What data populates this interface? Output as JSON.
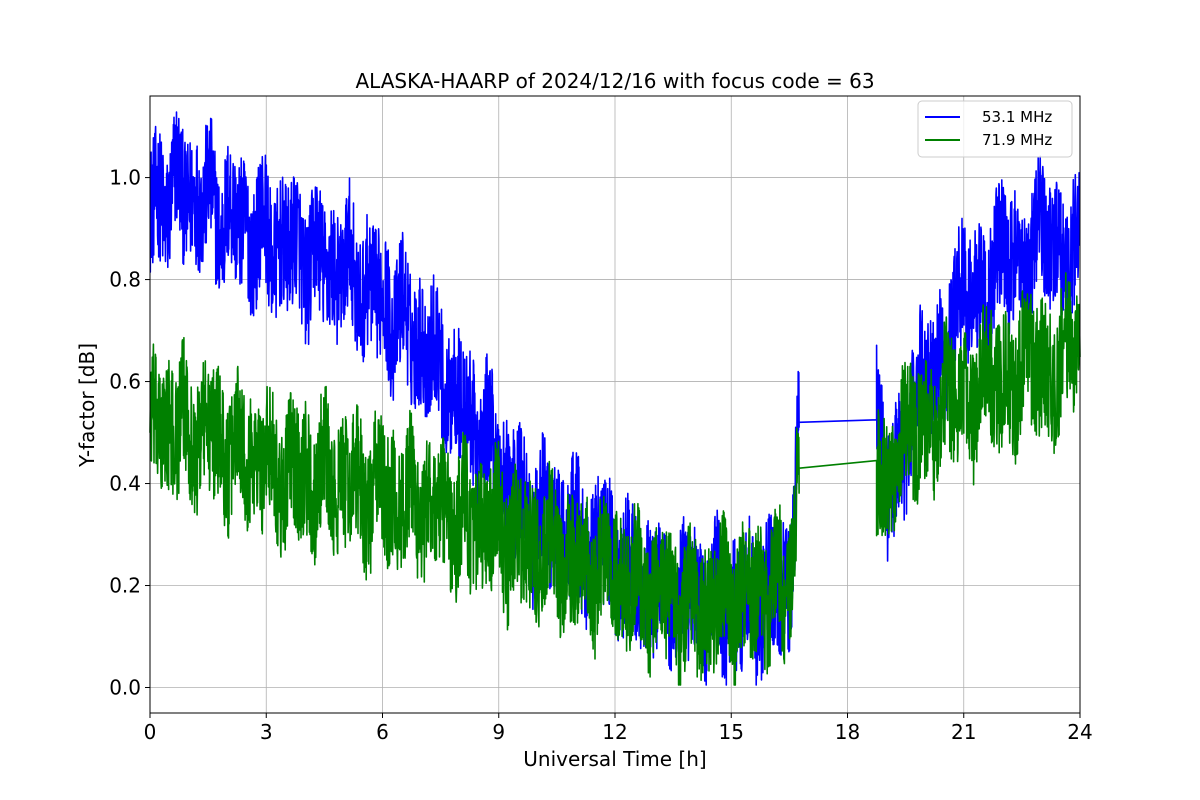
{
  "chart_data": {
    "type": "line",
    "title": "ALASKA-HAARP of 2024/12/16 with focus code = 63",
    "xlabel": "Universal Time [h]",
    "ylabel": "Y-factor [dB]",
    "xlim": [
      0,
      24
    ],
    "ylim": [
      -0.05,
      1.16
    ],
    "xticks": [
      0,
      3,
      6,
      9,
      12,
      15,
      18,
      21,
      24
    ],
    "xtick_labels": [
      "0",
      "3",
      "6",
      "9",
      "12",
      "15",
      "18",
      "21",
      "24"
    ],
    "yticks": [
      0.0,
      0.2,
      0.4,
      0.6,
      0.8,
      1.0
    ],
    "ytick_labels": [
      "0.0",
      "0.2",
      "0.4",
      "0.6",
      "0.8",
      "1.0"
    ],
    "grid": true,
    "legend_position": "top-right",
    "gap": {
      "start": 16.75,
      "end": 18.75
    },
    "series": [
      {
        "name": "53.1 MHz",
        "color": "#0000ff",
        "x": [
          0,
          0.5,
          1,
          1.5,
          2,
          2.5,
          3,
          3.5,
          4,
          4.5,
          5,
          5.5,
          6,
          6.5,
          7,
          7.5,
          8,
          8.5,
          9,
          9.5,
          10,
          10.5,
          11,
          11.5,
          12,
          12.5,
          13,
          13.5,
          14,
          14.5,
          15,
          15.5,
          16,
          16.5,
          16.75,
          18.75,
          19,
          19.5,
          20,
          20.5,
          21,
          21.5,
          22,
          22.5,
          23,
          23.5,
          24
        ],
        "y": [
          0.94,
          0.97,
          0.97,
          0.95,
          0.92,
          0.9,
          0.88,
          0.86,
          0.85,
          0.83,
          0.82,
          0.79,
          0.76,
          0.72,
          0.68,
          0.63,
          0.55,
          0.5,
          0.45,
          0.37,
          0.33,
          0.31,
          0.29,
          0.28,
          0.25,
          0.22,
          0.2,
          0.18,
          0.18,
          0.17,
          0.16,
          0.17,
          0.18,
          0.2,
          0.52,
          0.525,
          0.38,
          0.5,
          0.6,
          0.68,
          0.76,
          0.8,
          0.83,
          0.85,
          0.88,
          0.87,
          0.86
        ],
        "noise_amp": 0.13
      },
      {
        "name": "71.9 MHz",
        "color": "#008000",
        "x": [
          0,
          0.5,
          1,
          1.5,
          2,
          2.5,
          3,
          3.5,
          4,
          4.5,
          5,
          5.5,
          6,
          6.5,
          7,
          7.5,
          8,
          8.5,
          9,
          9.5,
          10,
          10.5,
          11,
          11.5,
          12,
          12.5,
          13,
          13.5,
          14,
          14.5,
          15,
          15.5,
          16,
          16.5,
          16.75,
          18.75,
          19,
          19.5,
          20,
          20.5,
          21,
          21.5,
          22,
          22.5,
          23,
          23.5,
          24
        ],
        "y": [
          0.5,
          0.52,
          0.5,
          0.5,
          0.47,
          0.47,
          0.44,
          0.42,
          0.42,
          0.41,
          0.4,
          0.39,
          0.38,
          0.37,
          0.36,
          0.35,
          0.33,
          0.31,
          0.31,
          0.28,
          0.27,
          0.25,
          0.25,
          0.23,
          0.22,
          0.2,
          0.18,
          0.17,
          0.16,
          0.16,
          0.17,
          0.18,
          0.19,
          0.2,
          0.43,
          0.445,
          0.42,
          0.48,
          0.52,
          0.54,
          0.56,
          0.58,
          0.6,
          0.62,
          0.63,
          0.64,
          0.66
        ],
        "noise_amp": 0.13
      }
    ]
  }
}
